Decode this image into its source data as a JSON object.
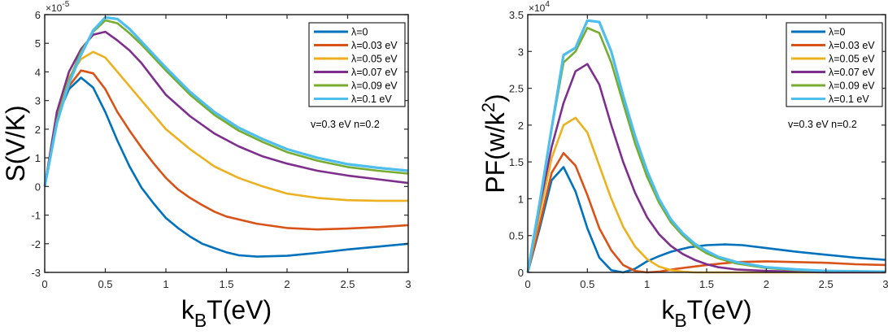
{
  "chart_data": [
    {
      "type": "line",
      "title": "",
      "xlabel": "k_B T(eV)",
      "xlabel_main": "k",
      "xlabel_sub": "B",
      "xlabel_rest": "T(eV)",
      "ylabel": "S(V/K)",
      "y_exponent_prefix": "×10",
      "y_exponent": "-5",
      "xlim": [
        0,
        3
      ],
      "ylim": [
        -3,
        6
      ],
      "xticks": [
        0,
        0.5,
        1,
        1.5,
        2,
        2.5,
        3
      ],
      "xtick_labels": [
        "0",
        "0.5",
        "1",
        "1.5",
        "2",
        "2.5",
        "3"
      ],
      "yticks": [
        -3,
        -2,
        -1,
        0,
        1,
        2,
        3,
        4,
        5,
        6
      ],
      "ytick_labels": [
        "-3",
        "-2",
        "-1",
        "0",
        "1",
        "2",
        "3",
        "4",
        "5",
        "6"
      ],
      "grid": false,
      "legend_position": "top-right",
      "annotation": "v=0.3 eV n=0.2",
      "series": [
        {
          "name": "λ=0",
          "color": "#0072BD",
          "x": [
            0,
            0.1,
            0.2,
            0.3,
            0.4,
            0.5,
            0.6,
            0.7,
            0.8,
            0.9,
            1.0,
            1.1,
            1.2,
            1.3,
            1.4,
            1.5,
            1.6,
            1.75,
            2.0,
            2.25,
            2.5,
            2.75,
            3.0
          ],
          "y": [
            0,
            2.4,
            3.4,
            3.8,
            3.45,
            2.6,
            1.6,
            0.7,
            -0.05,
            -0.6,
            -1.1,
            -1.45,
            -1.75,
            -2.0,
            -2.15,
            -2.3,
            -2.4,
            -2.45,
            -2.42,
            -2.32,
            -2.2,
            -2.1,
            -2.0
          ]
        },
        {
          "name": "λ=0.03 eV",
          "color": "#D95319",
          "x": [
            0,
            0.1,
            0.2,
            0.3,
            0.4,
            0.5,
            0.6,
            0.7,
            0.8,
            0.9,
            1.0,
            1.1,
            1.2,
            1.3,
            1.4,
            1.5,
            1.75,
            2.0,
            2.25,
            2.5,
            2.75,
            3.0
          ],
          "y": [
            0,
            2.45,
            3.5,
            4.05,
            3.95,
            3.4,
            2.6,
            1.95,
            1.35,
            0.8,
            0.3,
            -0.1,
            -0.4,
            -0.65,
            -0.88,
            -1.05,
            -1.3,
            -1.45,
            -1.5,
            -1.47,
            -1.42,
            -1.35
          ]
        },
        {
          "name": "λ=0.05 eV",
          "color": "#EDB120",
          "x": [
            0,
            0.1,
            0.2,
            0.3,
            0.4,
            0.5,
            0.6,
            0.7,
            0.8,
            0.9,
            1.0,
            1.2,
            1.4,
            1.6,
            1.8,
            2.0,
            2.25,
            2.5,
            2.75,
            3.0
          ],
          "y": [
            0,
            2.5,
            3.8,
            4.45,
            4.7,
            4.5,
            4.0,
            3.5,
            3.0,
            2.5,
            2.0,
            1.3,
            0.7,
            0.3,
            0.0,
            -0.25,
            -0.4,
            -0.48,
            -0.5,
            -0.5
          ]
        },
        {
          "name": "λ=0.07 eV",
          "color": "#7E2F8E",
          "x": [
            0,
            0.1,
            0.2,
            0.3,
            0.4,
            0.5,
            0.6,
            0.7,
            0.8,
            0.9,
            1.0,
            1.2,
            1.4,
            1.6,
            1.8,
            2.0,
            2.25,
            2.5,
            2.75,
            3.0
          ],
          "y": [
            0,
            2.6,
            4.0,
            4.8,
            5.3,
            5.4,
            5.1,
            4.75,
            4.3,
            3.75,
            3.2,
            2.45,
            1.85,
            1.4,
            1.05,
            0.8,
            0.55,
            0.38,
            0.25,
            0.12
          ]
        },
        {
          "name": "λ=0.09 eV",
          "color": "#77AC30",
          "x": [
            0,
            0.1,
            0.2,
            0.3,
            0.4,
            0.5,
            0.6,
            0.7,
            0.8,
            0.9,
            1.0,
            1.2,
            1.4,
            1.6,
            1.8,
            2.0,
            2.25,
            2.5,
            2.75,
            3.0
          ],
          "y": [
            0,
            2.3,
            3.7,
            4.7,
            5.4,
            5.8,
            5.7,
            5.35,
            4.95,
            4.5,
            4.05,
            3.2,
            2.5,
            1.95,
            1.55,
            1.2,
            0.9,
            0.68,
            0.55,
            0.45
          ]
        },
        {
          "name": "λ=0.1 eV",
          "color": "#4DBEEE",
          "x": [
            0,
            0.1,
            0.2,
            0.3,
            0.4,
            0.5,
            0.6,
            0.7,
            0.8,
            0.9,
            1.0,
            1.2,
            1.4,
            1.6,
            1.8,
            2.0,
            2.25,
            2.5,
            2.75,
            3.0
          ],
          "y": [
            0,
            2.2,
            3.6,
            4.6,
            5.45,
            5.9,
            5.85,
            5.5,
            5.05,
            4.6,
            4.15,
            3.3,
            2.6,
            2.05,
            1.65,
            1.3,
            1.0,
            0.78,
            0.65,
            0.55
          ]
        }
      ]
    },
    {
      "type": "line",
      "title": "",
      "xlabel": "k_B T(eV)",
      "xlabel_main": "k",
      "xlabel_sub": "B",
      "xlabel_rest": "T(eV)",
      "ylabel": "PF(w/k^2)",
      "ylabel_main": "PF(w/k",
      "ylabel_sup": "2",
      "ylabel_end": ")",
      "y_exponent_prefix": "×10",
      "y_exponent": "4",
      "xlim": [
        0,
        3
      ],
      "ylim": [
        0,
        3.5
      ],
      "xticks": [
        0,
        0.5,
        1,
        1.5,
        2,
        2.5,
        3
      ],
      "xtick_labels": [
        "0",
        "0.5",
        "1",
        "1.5",
        "2",
        "2.5",
        "3"
      ],
      "yticks": [
        0,
        0.5,
        1,
        1.5,
        2,
        2.5,
        3,
        3.5
      ],
      "ytick_labels": [
        "0",
        "0.5",
        "1",
        "1.5",
        "2",
        "2.5",
        "3",
        "3.5"
      ],
      "grid": false,
      "legend_position": "top-right",
      "annotation": "v=0.3 eV n=0.2",
      "series": [
        {
          "name": "λ=0",
          "color": "#0072BD",
          "x": [
            0,
            0.1,
            0.2,
            0.3,
            0.4,
            0.5,
            0.6,
            0.7,
            0.8,
            0.9,
            1.0,
            1.1,
            1.2,
            1.35,
            1.5,
            1.65,
            1.8,
            2.0,
            2.25,
            2.5,
            2.75,
            3.0
          ],
          "y": [
            0,
            0.6,
            1.25,
            1.43,
            1.1,
            0.6,
            0.2,
            0.03,
            0,
            0.05,
            0.15,
            0.22,
            0.28,
            0.34,
            0.37,
            0.38,
            0.37,
            0.33,
            0.28,
            0.24,
            0.2,
            0.17
          ]
        },
        {
          "name": "λ=0.03 eV",
          "color": "#D95319",
          "x": [
            0,
            0.1,
            0.2,
            0.3,
            0.4,
            0.5,
            0.6,
            0.7,
            0.8,
            0.9,
            1.0,
            1.1,
            1.25,
            1.5,
            1.75,
            2.0,
            2.25,
            2.5,
            2.75,
            3.0
          ],
          "y": [
            0,
            0.65,
            1.35,
            1.62,
            1.45,
            1.05,
            0.6,
            0.3,
            0.1,
            0.02,
            0,
            0.01,
            0.05,
            0.1,
            0.14,
            0.15,
            0.14,
            0.13,
            0.11,
            0.1
          ]
        },
        {
          "name": "λ=0.05 eV",
          "color": "#EDB120",
          "x": [
            0,
            0.1,
            0.2,
            0.3,
            0.4,
            0.5,
            0.6,
            0.7,
            0.8,
            0.9,
            1.0,
            1.1,
            1.2,
            1.3,
            1.4,
            1.5,
            1.75,
            2.0,
            2.5,
            3.0
          ],
          "y": [
            0,
            0.8,
            1.55,
            2.0,
            2.1,
            1.9,
            1.45,
            1.0,
            0.62,
            0.35,
            0.18,
            0.08,
            0.03,
            0.01,
            0,
            0,
            0,
            0,
            0,
            0
          ]
        },
        {
          "name": "λ=0.07 eV",
          "color": "#7E2F8E",
          "x": [
            0,
            0.1,
            0.2,
            0.3,
            0.4,
            0.5,
            0.6,
            0.7,
            0.8,
            0.9,
            1.0,
            1.1,
            1.2,
            1.3,
            1.4,
            1.5,
            1.6,
            1.75,
            2.0,
            2.25,
            2.5,
            3.0
          ],
          "y": [
            0,
            0.9,
            1.7,
            2.3,
            2.73,
            2.83,
            2.55,
            2.0,
            1.5,
            1.08,
            0.75,
            0.52,
            0.36,
            0.25,
            0.17,
            0.11,
            0.07,
            0.04,
            0.02,
            0.01,
            0,
            0
          ]
        },
        {
          "name": "λ=0.09 eV",
          "color": "#77AC30",
          "x": [
            0,
            0.1,
            0.2,
            0.3,
            0.4,
            0.5,
            0.6,
            0.7,
            0.8,
            0.9,
            1.0,
            1.1,
            1.2,
            1.3,
            1.4,
            1.5,
            1.6,
            1.75,
            2.0,
            2.25,
            2.5,
            3.0
          ],
          "y": [
            0,
            0.95,
            1.95,
            2.85,
            3.0,
            3.32,
            3.25,
            2.85,
            2.3,
            1.75,
            1.3,
            0.95,
            0.68,
            0.5,
            0.36,
            0.26,
            0.19,
            0.12,
            0.06,
            0.03,
            0.02,
            0.01
          ]
        },
        {
          "name": "λ=0.1 eV",
          "color": "#4DBEEE",
          "x": [
            0,
            0.1,
            0.2,
            0.3,
            0.4,
            0.5,
            0.6,
            0.7,
            0.8,
            0.9,
            1.0,
            1.1,
            1.2,
            1.3,
            1.4,
            1.5,
            1.6,
            1.75,
            2.0,
            2.25,
            2.5,
            3.0
          ],
          "y": [
            0,
            0.95,
            1.95,
            2.95,
            3.05,
            3.42,
            3.4,
            3.0,
            2.4,
            1.85,
            1.38,
            1.0,
            0.72,
            0.53,
            0.39,
            0.29,
            0.21,
            0.14,
            0.07,
            0.04,
            0.02,
            0.01
          ]
        }
      ]
    }
  ]
}
